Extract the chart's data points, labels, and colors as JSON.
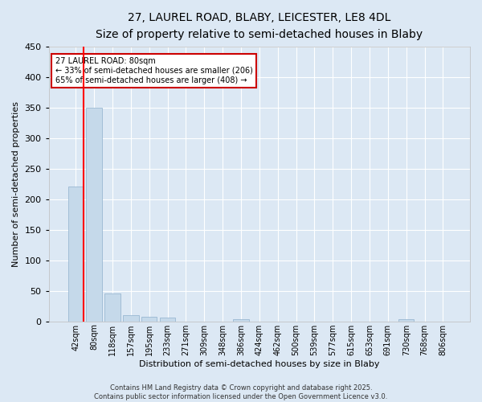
{
  "title_line1": "27, LAUREL ROAD, BLABY, LEICESTER, LE8 4DL",
  "title_line2": "Size of property relative to semi-detached houses in Blaby",
  "xlabel": "Distribution of semi-detached houses by size in Blaby",
  "ylabel": "Number of semi-detached properties",
  "categories": [
    "42sqm",
    "80sqm",
    "118sqm",
    "157sqm",
    "195sqm",
    "233sqm",
    "271sqm",
    "309sqm",
    "348sqm",
    "386sqm",
    "424sqm",
    "462sqm",
    "500sqm",
    "539sqm",
    "577sqm",
    "615sqm",
    "653sqm",
    "691sqm",
    "730sqm",
    "768sqm",
    "806sqm"
  ],
  "values": [
    220,
    350,
    45,
    10,
    8,
    6,
    0,
    0,
    0,
    4,
    0,
    0,
    0,
    0,
    0,
    0,
    0,
    0,
    3,
    0,
    0
  ],
  "bar_color": "#c5d9ea",
  "bar_edgecolor": "#8eb0cc",
  "red_line_x": 0.5,
  "ylim": [
    0,
    450
  ],
  "yticks": [
    0,
    50,
    100,
    150,
    200,
    250,
    300,
    350,
    400,
    450
  ],
  "annotation_title": "27 LAUREL ROAD: 80sqm",
  "annotation_line1": "← 33% of semi-detached houses are smaller (206)",
  "annotation_line2": "65% of semi-detached houses are larger (408) →",
  "annotation_box_facecolor": "#ffffff",
  "annotation_box_edgecolor": "#cc0000",
  "footer_line1": "Contains HM Land Registry data © Crown copyright and database right 2025.",
  "footer_line2": "Contains public sector information licensed under the Open Government Licence v3.0.",
  "background_color": "#dce8f4",
  "plot_background": "#dce8f4",
  "grid_color": "#ffffff",
  "title_fontsize": 10,
  "subtitle_fontsize": 9,
  "tick_fontsize": 7,
  "ylabel_fontsize": 8,
  "xlabel_fontsize": 8,
  "annotation_fontsize": 7,
  "footer_fontsize": 6
}
